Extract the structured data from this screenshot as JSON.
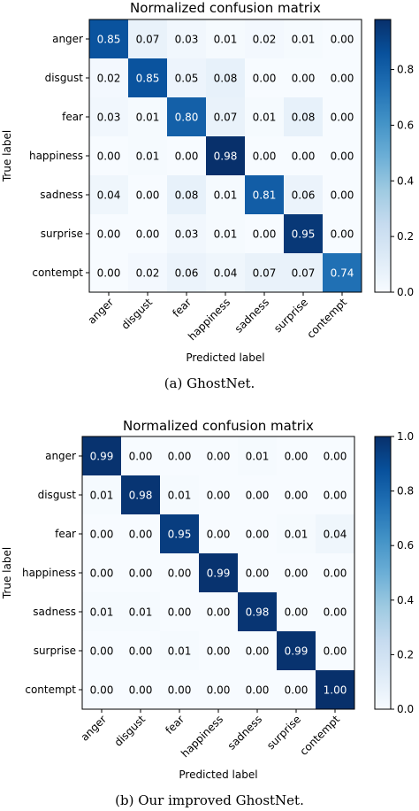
{
  "chart_data": [
    {
      "type": "heatmap",
      "title": "Normalized confusion matrix",
      "xlabel": "Predicted label",
      "ylabel": "True label",
      "row_labels": [
        "anger",
        "disgust",
        "fear",
        "happiness",
        "sadness",
        "surprise",
        "contempt"
      ],
      "col_labels": [
        "anger",
        "disgust",
        "fear",
        "happiness",
        "sadness",
        "surprise",
        "contempt"
      ],
      "values": [
        [
          0.85,
          0.07,
          0.03,
          0.01,
          0.02,
          0.01,
          0.0
        ],
        [
          0.02,
          0.85,
          0.05,
          0.08,
          0.0,
          0.0,
          0.0
        ],
        [
          0.03,
          0.01,
          0.8,
          0.07,
          0.01,
          0.08,
          0.0
        ],
        [
          0.0,
          0.01,
          0.0,
          0.98,
          0.0,
          0.0,
          0.0
        ],
        [
          0.04,
          0.0,
          0.08,
          0.01,
          0.81,
          0.06,
          0.0
        ],
        [
          0.0,
          0.0,
          0.03,
          0.01,
          0.0,
          0.95,
          0.0
        ],
        [
          0.0,
          0.02,
          0.06,
          0.04,
          0.07,
          0.07,
          0.74
        ]
      ],
      "colorbar": {
        "range": [
          0.0,
          0.98
        ],
        "ticks": [
          "0.0",
          "0.2",
          "0.4",
          "0.6",
          "0.8"
        ]
      },
      "colormap": "Blues",
      "caption": "(a) GhostNet."
    },
    {
      "type": "heatmap",
      "title": "Normalized confusion matrix",
      "xlabel": "Predicted label",
      "ylabel": "True label",
      "row_labels": [
        "anger",
        "disgust",
        "fear",
        "happiness",
        "sadness",
        "surprise",
        "contempt"
      ],
      "col_labels": [
        "anger",
        "disgust",
        "fear",
        "happiness",
        "sadness",
        "surprise",
        "contempt"
      ],
      "values": [
        [
          0.99,
          0.0,
          0.0,
          0.0,
          0.01,
          0.0,
          0.0
        ],
        [
          0.01,
          0.98,
          0.01,
          0.0,
          0.0,
          0.0,
          0.0
        ],
        [
          0.0,
          0.0,
          0.95,
          0.0,
          0.0,
          0.01,
          0.04
        ],
        [
          0.0,
          0.0,
          0.0,
          0.99,
          0.0,
          0.0,
          0.0
        ],
        [
          0.01,
          0.01,
          0.0,
          0.0,
          0.98,
          0.0,
          0.0
        ],
        [
          0.0,
          0.0,
          0.01,
          0.0,
          0.0,
          0.99,
          0.0
        ],
        [
          0.0,
          0.0,
          0.0,
          0.0,
          0.0,
          0.0,
          1.0
        ]
      ],
      "colorbar": {
        "range": [
          0.0,
          1.0
        ],
        "ticks": [
          "0.0",
          "0.2",
          "0.4",
          "0.6",
          "0.8",
          "1.0"
        ]
      },
      "colormap": "Blues",
      "caption": "(b) Our improved GhostNet."
    }
  ]
}
